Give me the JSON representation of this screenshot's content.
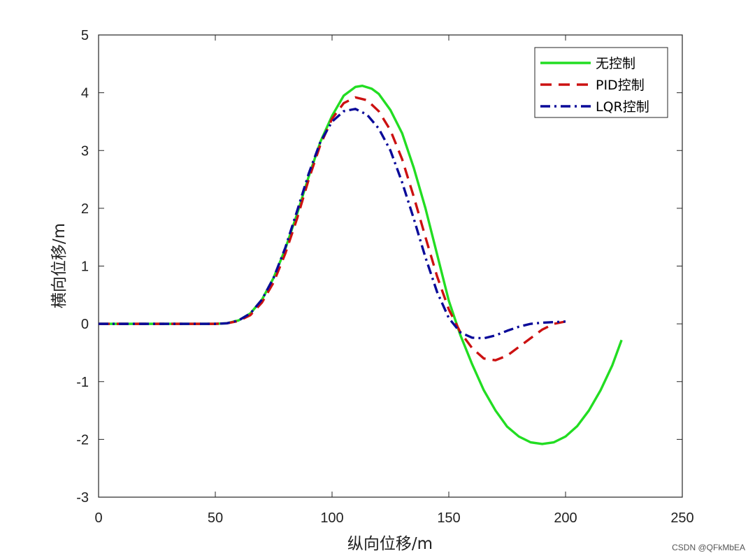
{
  "chart_data": {
    "type": "line",
    "xlabel": "纵向位移/m",
    "ylabel": "横向位移/m",
    "xlim": [
      0,
      250
    ],
    "ylim": [
      -3,
      5
    ],
    "xticks": [
      0,
      50,
      100,
      150,
      200,
      250
    ],
    "yticks": [
      -3,
      -2,
      -1,
      0,
      1,
      2,
      3,
      4,
      5
    ],
    "grid": false,
    "legend_position": "top-right",
    "series": [
      {
        "name": "无控制",
        "color": "#22dd22",
        "style": "solid",
        "points": [
          [
            0,
            0
          ],
          [
            50,
            0
          ],
          [
            55,
            0.01
          ],
          [
            60,
            0.06
          ],
          [
            65,
            0.18
          ],
          [
            70,
            0.42
          ],
          [
            75,
            0.8
          ],
          [
            80,
            1.3
          ],
          [
            85,
            1.9
          ],
          [
            90,
            2.55
          ],
          [
            95,
            3.15
          ],
          [
            100,
            3.6
          ],
          [
            105,
            3.95
          ],
          [
            110,
            4.1
          ],
          [
            113,
            4.12
          ],
          [
            117,
            4.07
          ],
          [
            120,
            3.98
          ],
          [
            125,
            3.7
          ],
          [
            130,
            3.3
          ],
          [
            135,
            2.7
          ],
          [
            140,
            2.0
          ],
          [
            145,
            1.2
          ],
          [
            150,
            0.4
          ],
          [
            155,
            -0.2
          ],
          [
            160,
            -0.7
          ],
          [
            165,
            -1.15
          ],
          [
            170,
            -1.5
          ],
          [
            175,
            -1.78
          ],
          [
            180,
            -1.95
          ],
          [
            185,
            -2.05
          ],
          [
            190,
            -2.08
          ],
          [
            195,
            -2.05
          ],
          [
            200,
            -1.95
          ],
          [
            205,
            -1.77
          ],
          [
            210,
            -1.5
          ],
          [
            215,
            -1.15
          ],
          [
            220,
            -0.72
          ],
          [
            224,
            -0.28
          ]
        ]
      },
      {
        "name": "PID控制",
        "color": "#cc1111",
        "style": "dashed",
        "points": [
          [
            0,
            0
          ],
          [
            50,
            0
          ],
          [
            55,
            0.01
          ],
          [
            60,
            0.05
          ],
          [
            65,
            0.15
          ],
          [
            70,
            0.37
          ],
          [
            75,
            0.72
          ],
          [
            80,
            1.22
          ],
          [
            85,
            1.82
          ],
          [
            90,
            2.5
          ],
          [
            95,
            3.1
          ],
          [
            100,
            3.55
          ],
          [
            105,
            3.82
          ],
          [
            110,
            3.92
          ],
          [
            115,
            3.87
          ],
          [
            120,
            3.68
          ],
          [
            125,
            3.35
          ],
          [
            130,
            2.85
          ],
          [
            135,
            2.2
          ],
          [
            140,
            1.5
          ],
          [
            145,
            0.82
          ],
          [
            150,
            0.25
          ],
          [
            155,
            -0.15
          ],
          [
            160,
            -0.42
          ],
          [
            165,
            -0.6
          ],
          [
            170,
            -0.63
          ],
          [
            175,
            -0.55
          ],
          [
            180,
            -0.4
          ],
          [
            185,
            -0.25
          ],
          [
            190,
            -0.1
          ],
          [
            195,
            0.0
          ],
          [
            200,
            0.04
          ]
        ]
      },
      {
        "name": "LQR控制",
        "color": "#0a0a99",
        "style": "dashdot",
        "points": [
          [
            0,
            0
          ],
          [
            50,
            0
          ],
          [
            55,
            0.01
          ],
          [
            60,
            0.06
          ],
          [
            65,
            0.18
          ],
          [
            70,
            0.42
          ],
          [
            75,
            0.8
          ],
          [
            80,
            1.32
          ],
          [
            85,
            1.95
          ],
          [
            90,
            2.6
          ],
          [
            95,
            3.15
          ],
          [
            100,
            3.5
          ],
          [
            105,
            3.68
          ],
          [
            110,
            3.72
          ],
          [
            115,
            3.62
          ],
          [
            120,
            3.38
          ],
          [
            125,
            3.0
          ],
          [
            130,
            2.45
          ],
          [
            135,
            1.82
          ],
          [
            140,
            1.15
          ],
          [
            145,
            0.55
          ],
          [
            150,
            0.1
          ],
          [
            155,
            -0.15
          ],
          [
            160,
            -0.24
          ],
          [
            165,
            -0.25
          ],
          [
            170,
            -0.2
          ],
          [
            175,
            -0.12
          ],
          [
            180,
            -0.05
          ],
          [
            185,
            0.0
          ],
          [
            190,
            0.02
          ],
          [
            195,
            0.03
          ],
          [
            200,
            0.04
          ]
        ]
      }
    ]
  },
  "watermark": "CSDN @QFkMbEA"
}
